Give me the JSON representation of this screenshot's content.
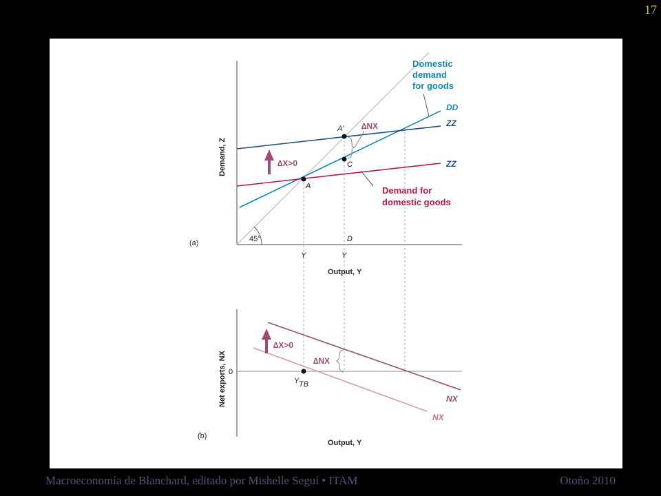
{
  "slide_number": "17",
  "footer": {
    "left": "Macroeconomía de  Blanchard, editado por Mishelle Seguí • ITAM",
    "right": "Otoño 2010"
  },
  "colors": {
    "dd_line": "#1488b4",
    "zz_line": "#1f4c84",
    "demand_domestic_line": "#b5184c",
    "nx_line": "#9c4c6c",
    "arrow": "#9c4c74",
    "guide": "#b0b0b0"
  },
  "panel_a": {
    "label": "(a)",
    "y_axis_label": "Demand,  Z",
    "x_axis_label": "Output, Y",
    "angle_label": "45°",
    "tick_y1": "Y",
    "tick_y2": "Y",
    "point_a": "A",
    "point_a_prime": "A'",
    "point_c": "C",
    "point_d": "D",
    "delta_x": "∆X>0",
    "delta_nx": "∆NX",
    "domestic_demand_label": [
      "Domestic",
      "demand",
      "for goods"
    ],
    "dd": "DD",
    "zz_new": "ZZ",
    "zz_old": "ZZ",
    "demand_for_domestic_label": [
      "Demand for",
      "domestic goods"
    ]
  },
  "panel_b": {
    "label": "(b)",
    "y_axis_label": "Net exports, NX",
    "x_axis_label": "Output, Y",
    "zero_label": "0",
    "ytb_y": "Y",
    "ytb_sub": "TB",
    "delta_x": "∆X>0",
    "delta_nx": "∆NX",
    "nx_new": "NX",
    "nx_old": "NX"
  }
}
